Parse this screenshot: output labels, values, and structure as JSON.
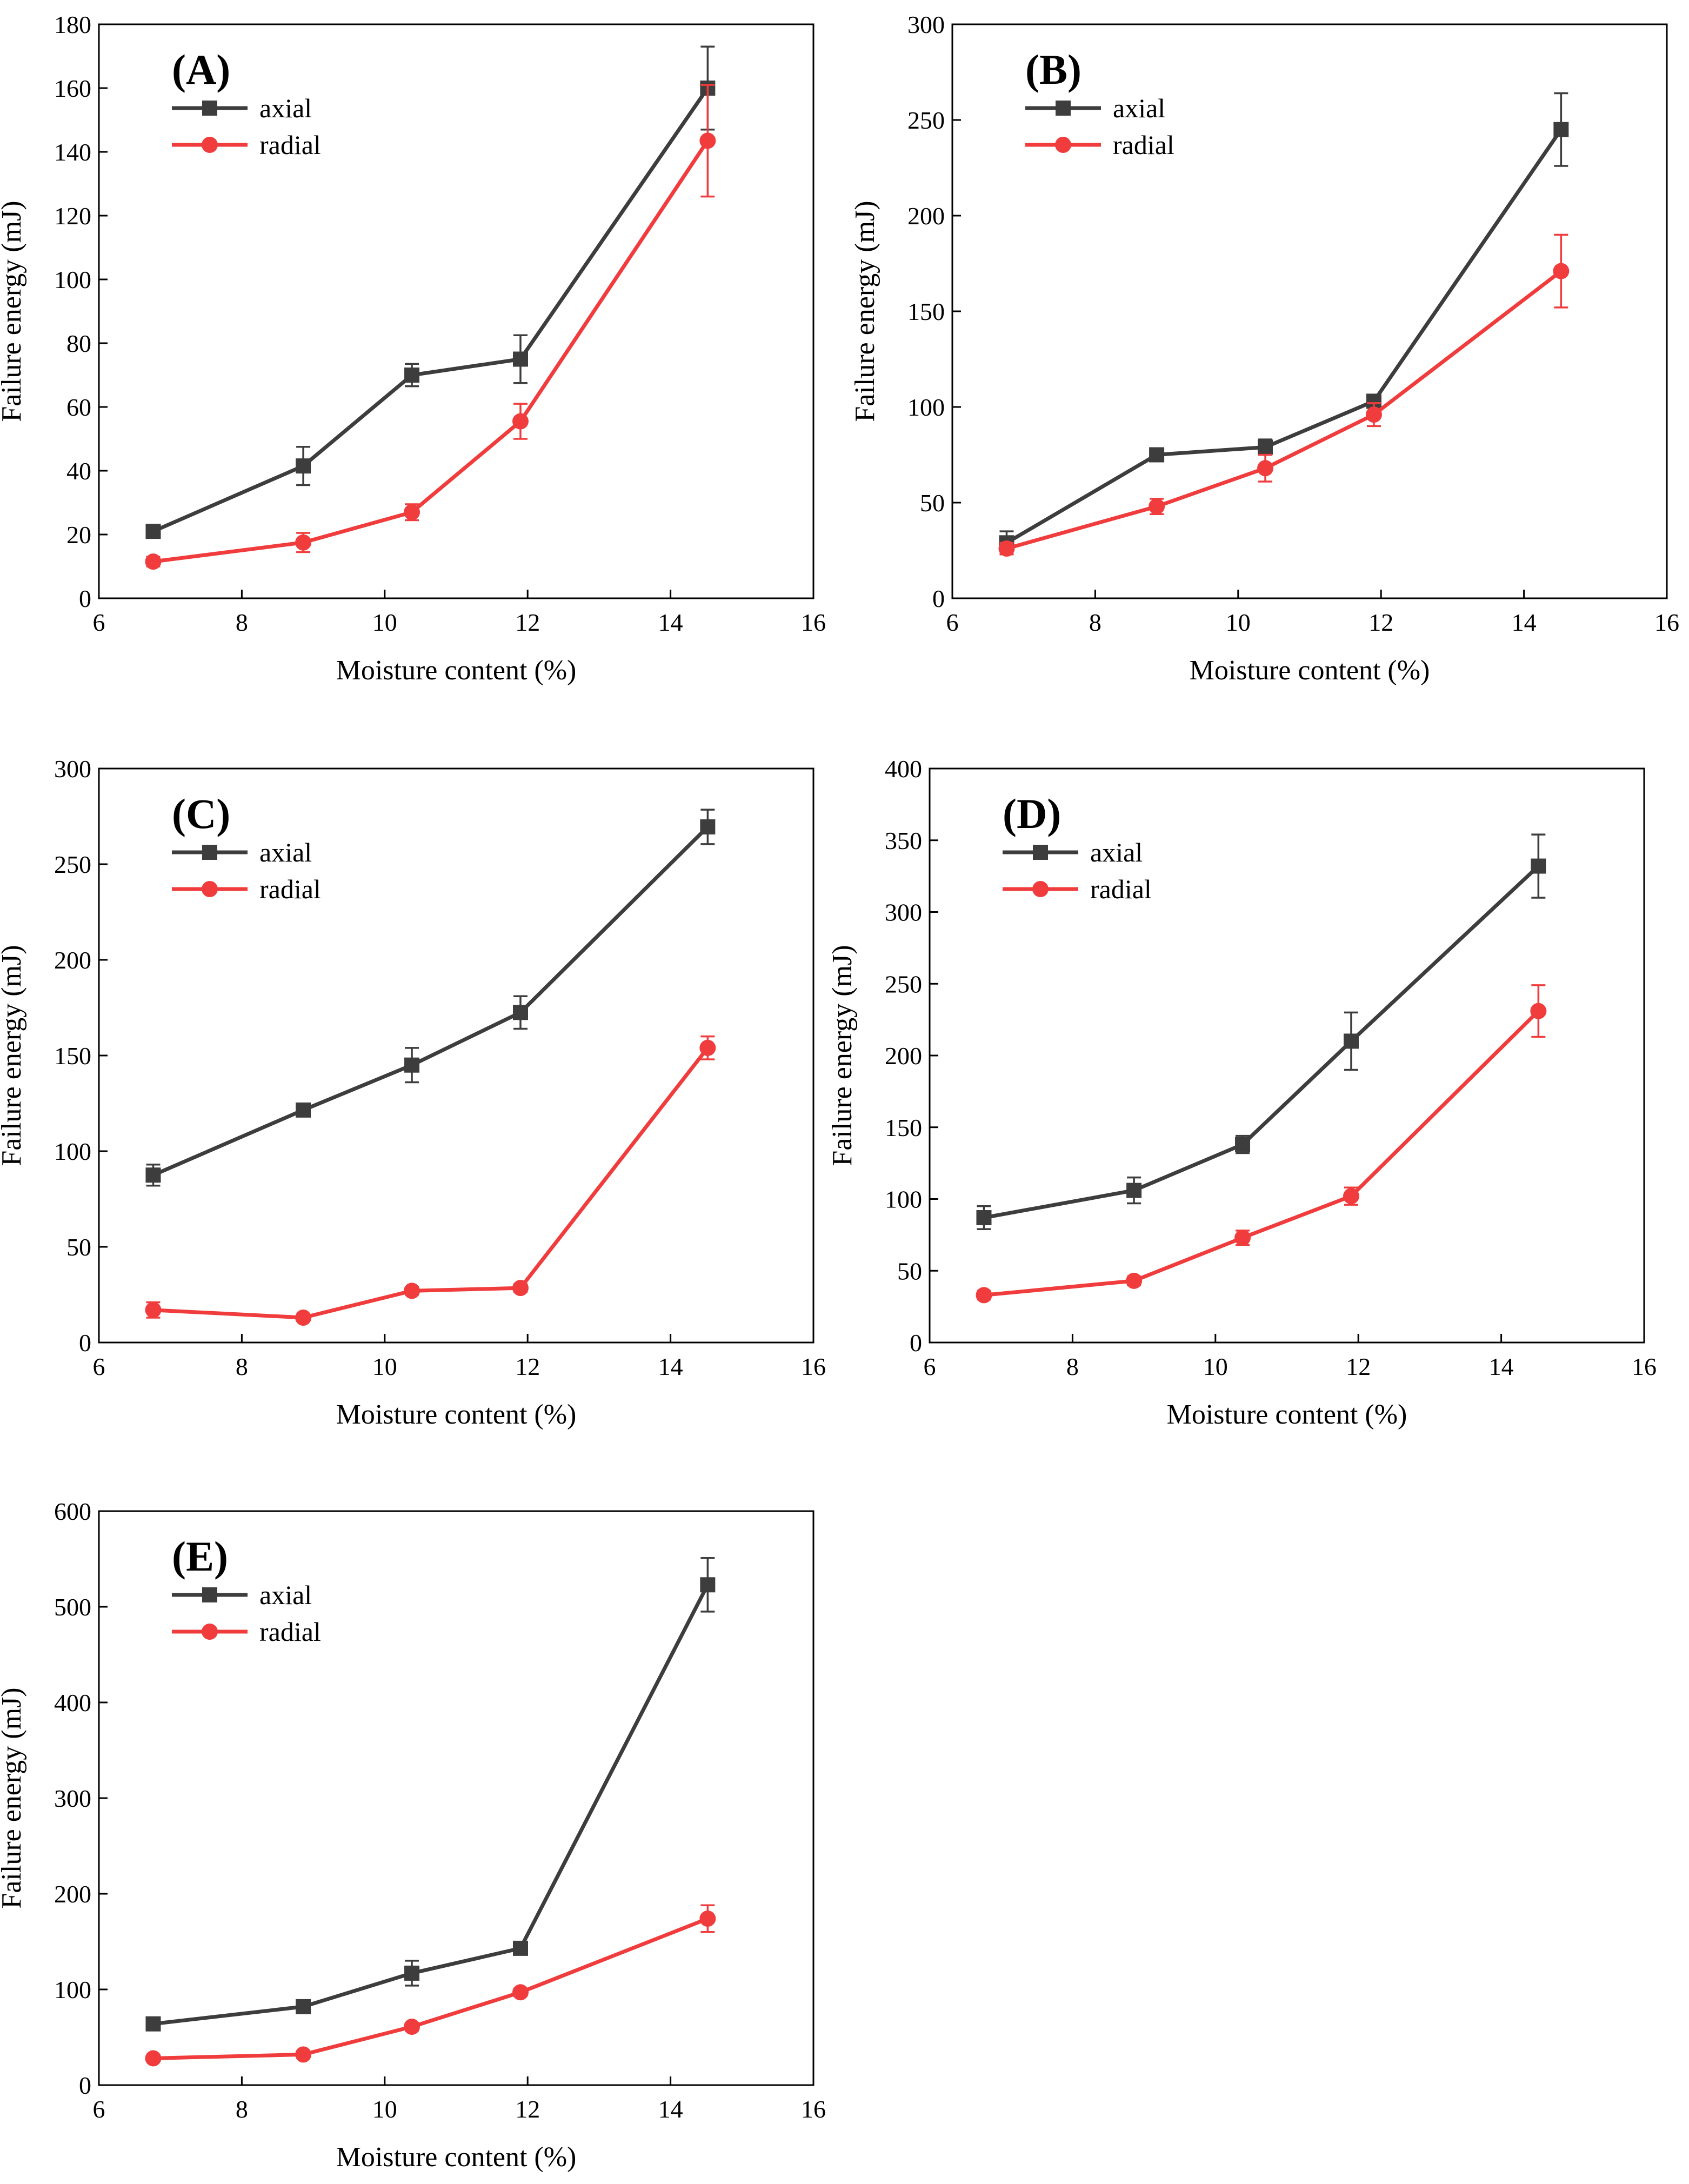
{
  "figure": {
    "series_names": [
      "axial",
      "radial"
    ],
    "colors": {
      "axial": "#3d3d3d",
      "radial": "#f03c3c",
      "axis": "#000000"
    },
    "markers": {
      "axial": "square",
      "radial": "circle"
    }
  },
  "chart_data": [
    {
      "type": "line",
      "panel_label": "(A)",
      "xlabel": "Moisture content (%)",
      "ylabel": "Failure energy (mJ)",
      "xlim": [
        6,
        16
      ],
      "ylim": [
        0,
        180
      ],
      "xticks": [
        6,
        8,
        10,
        12,
        14,
        16
      ],
      "yticks": [
        0,
        20,
        40,
        60,
        80,
        100,
        120,
        140,
        160,
        180
      ],
      "x": [
        6.76,
        8.86,
        10.38,
        11.9,
        14.52
      ],
      "series": [
        {
          "name": "axial",
          "values": [
            21,
            41.5,
            70,
            75,
            160
          ],
          "errors": [
            1.5,
            6,
            3.5,
            7.5,
            13
          ]
        },
        {
          "name": "radial",
          "values": [
            11.5,
            17.5,
            27,
            55.5,
            143.5
          ],
          "errors": [
            1.5,
            3,
            2.5,
            5.5,
            17.5
          ]
        }
      ]
    },
    {
      "type": "line",
      "panel_label": "(B)",
      "xlabel": "Moisture content (%)",
      "ylabel": "Failure energy (mJ)",
      "xlim": [
        6,
        16
      ],
      "ylim": [
        0,
        300
      ],
      "xticks": [
        6,
        8,
        10,
        12,
        14,
        16
      ],
      "yticks": [
        0,
        50,
        100,
        150,
        200,
        250,
        300
      ],
      "x": [
        6.76,
        8.86,
        10.38,
        11.9,
        14.52
      ],
      "series": [
        {
          "name": "axial",
          "values": [
            29,
            75,
            79,
            103,
            245
          ],
          "errors": [
            6,
            3,
            4,
            2,
            19
          ]
        },
        {
          "name": "radial",
          "values": [
            26,
            48,
            68,
            96,
            171
          ],
          "errors": [
            3,
            4,
            7,
            6,
            19
          ]
        }
      ]
    },
    {
      "type": "line",
      "panel_label": "(C)",
      "xlabel": "Moisture content (%)",
      "ylabel": "Failure energy (mJ)",
      "xlim": [
        6,
        16
      ],
      "ylim": [
        0,
        300
      ],
      "xticks": [
        6,
        8,
        10,
        12,
        14,
        16
      ],
      "yticks": [
        0,
        50,
        100,
        150,
        200,
        250,
        300
      ],
      "x": [
        6.76,
        8.86,
        10.38,
        11.9,
        14.52
      ],
      "series": [
        {
          "name": "axial",
          "values": [
            87.5,
            121.5,
            145,
            172.5,
            269.5
          ],
          "errors": [
            5.5,
            3,
            9,
            8.5,
            9
          ]
        },
        {
          "name": "radial",
          "values": [
            17,
            13,
            27,
            28.5,
            154
          ],
          "errors": [
            4,
            1.5,
            2,
            2,
            6
          ]
        }
      ]
    },
    {
      "type": "line",
      "panel_label": "(D)",
      "xlabel": "Moisture content (%)",
      "ylabel": "Failure energy (mJ)",
      "xlim": [
        6,
        16
      ],
      "ylim": [
        0,
        400
      ],
      "xticks": [
        6,
        8,
        10,
        12,
        14,
        16
      ],
      "yticks": [
        0,
        50,
        100,
        150,
        200,
        250,
        300,
        350,
        400
      ],
      "x": [
        6.76,
        8.86,
        10.38,
        11.9,
        14.52
      ],
      "series": [
        {
          "name": "axial",
          "values": [
            87,
            106,
            138,
            210,
            332
          ],
          "errors": [
            8,
            9,
            6,
            20,
            22
          ]
        },
        {
          "name": "radial",
          "values": [
            33,
            43,
            73,
            102,
            231
          ],
          "errors": [
            3,
            3,
            5,
            6,
            18
          ]
        }
      ]
    },
    {
      "type": "line",
      "panel_label": "(E)",
      "xlabel": "Moisture content (%)",
      "ylabel": "Failure energy (mJ)",
      "xlim": [
        6,
        16
      ],
      "ylim": [
        0,
        600
      ],
      "xticks": [
        6,
        8,
        10,
        12,
        14,
        16
      ],
      "yticks": [
        0,
        100,
        200,
        300,
        400,
        500,
        600
      ],
      "x": [
        6.76,
        8.86,
        10.38,
        11.9,
        14.52
      ],
      "series": [
        {
          "name": "axial",
          "values": [
            64,
            82,
            117,
            143,
            523
          ],
          "errors": [
            3,
            4,
            13,
            6,
            28
          ]
        },
        {
          "name": "radial",
          "values": [
            28,
            32,
            61,
            97,
            174
          ],
          "errors": [
            3,
            3,
            4,
            4,
            14
          ]
        }
      ]
    }
  ]
}
